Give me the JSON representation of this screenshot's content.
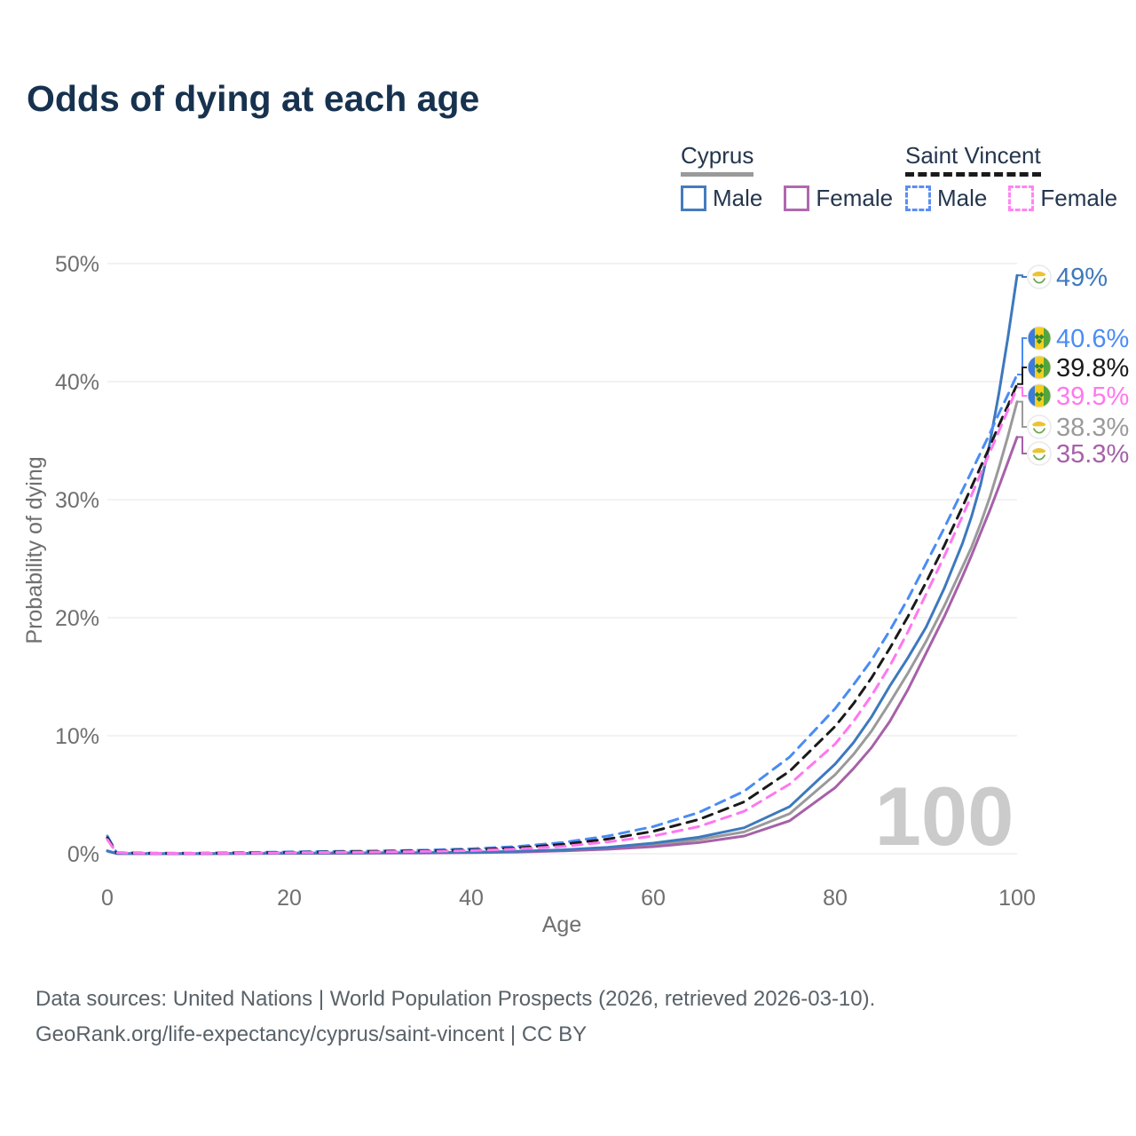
{
  "title": "Odds of dying at each age",
  "watermark": "100",
  "legend": {
    "groups": [
      {
        "label": "Cyprus",
        "underline_style": "solid",
        "underline_color": "#9a9a9a",
        "items": [
          {
            "label": "Male",
            "color": "#447cbd",
            "dashed": false
          },
          {
            "label": "Female",
            "color": "#b069af",
            "dashed": false
          }
        ]
      },
      {
        "label": "Saint Vincent",
        "underline_style": "dashed",
        "underline_color": "#1a1a1a",
        "items": [
          {
            "label": "Male",
            "color": "#5b8ff2",
            "dashed": true
          },
          {
            "label": "Female",
            "color": "#ff85f3",
            "dashed": true
          }
        ]
      }
    ]
  },
  "footer": {
    "line1": "Data sources: United Nations | World Population Prospects (2026, retrieved 2026-03-10).",
    "line2": "GeoRank.org/life-expectancy/cyprus/saint-vincent | CC BY"
  },
  "chart_data": {
    "type": "line",
    "title": "Odds of dying at each age",
    "xlabel": "Age",
    "ylabel": "Probability of dying",
    "xlim": [
      0,
      100
    ],
    "ylim": [
      0,
      50
    ],
    "grid": true,
    "legend_position": "top-right",
    "annotation_age_counter": "100",
    "x_ticks": [
      0,
      20,
      40,
      60,
      80,
      100
    ],
    "y_ticks": [
      "0%",
      "10%",
      "20%",
      "30%",
      "40%",
      "50%"
    ],
    "y_grid_values": [
      0,
      10,
      20,
      30,
      40,
      50
    ],
    "x": [
      0,
      1,
      5,
      10,
      15,
      20,
      25,
      30,
      35,
      40,
      45,
      50,
      55,
      60,
      65,
      70,
      75,
      80,
      82,
      84,
      86,
      88,
      90,
      92,
      94,
      95,
      96,
      97,
      98,
      99,
      100
    ],
    "series": [
      {
        "name": "Cyprus",
        "color": "#9a9a9a",
        "dashed": false,
        "flag": "cyprus",
        "end_label": "38.3%",
        "end_value": 38.3,
        "values": [
          0.24,
          0.025,
          0.01,
          0.01,
          0.03,
          0.05,
          0.06,
          0.07,
          0.09,
          0.12,
          0.17,
          0.28,
          0.46,
          0.75,
          1.2,
          1.85,
          3.4,
          6.7,
          8.4,
          10.4,
          12.8,
          15.3,
          18.0,
          21.0,
          24.3,
          26.0,
          28.0,
          30.2,
          32.7,
          35.4,
          38.3
        ]
      },
      {
        "name": "Cyprus Female",
        "color": "#a661a8",
        "dashed": false,
        "flag": "cyprus",
        "end_label": "35.3%",
        "end_value": 35.3,
        "values": [
          0.22,
          0.02,
          0.01,
          0.01,
          0.02,
          0.03,
          0.04,
          0.05,
          0.07,
          0.1,
          0.14,
          0.24,
          0.38,
          0.6,
          0.95,
          1.5,
          2.8,
          5.6,
          7.2,
          9.0,
          11.2,
          13.9,
          17.0,
          20.1,
          23.5,
          25.3,
          27.2,
          29.1,
          31.1,
          33.2,
          35.3
        ]
      },
      {
        "name": "Cyprus Male",
        "color": "#3d79bd",
        "dashed": false,
        "flag": "cyprus",
        "end_label": "49%",
        "end_value": 49,
        "values": [
          0.25,
          0.03,
          0.01,
          0.01,
          0.04,
          0.06,
          0.07,
          0.08,
          0.1,
          0.13,
          0.2,
          0.33,
          0.55,
          0.9,
          1.4,
          2.2,
          4.0,
          7.6,
          9.4,
          11.6,
          14.2,
          16.6,
          19.2,
          22.5,
          26.3,
          28.6,
          31.3,
          34.8,
          39.0,
          43.8,
          49.0
        ]
      },
      {
        "name": "Saint Vincent Male",
        "color": "#4a8cf5",
        "dashed": true,
        "flag": "saint-vincent",
        "end_label": "40.6%",
        "end_value": 40.6,
        "values": [
          1.5,
          0.1,
          0.05,
          0.05,
          0.1,
          0.16,
          0.2,
          0.25,
          0.31,
          0.42,
          0.62,
          0.95,
          1.5,
          2.3,
          3.5,
          5.3,
          8.2,
          12.3,
          14.3,
          16.4,
          18.9,
          21.6,
          24.6,
          27.6,
          30.8,
          32.4,
          34.0,
          35.6,
          37.3,
          38.9,
          40.6
        ]
      },
      {
        "name": "Saint Vincent",
        "color": "#1a1a1a",
        "dashed": true,
        "flag": "saint-vincent",
        "end_label": "39.8%",
        "end_value": 39.8,
        "values": [
          1.35,
          0.09,
          0.04,
          0.04,
          0.08,
          0.12,
          0.16,
          0.2,
          0.25,
          0.33,
          0.5,
          0.8,
          1.25,
          1.9,
          2.9,
          4.4,
          7.0,
          10.8,
          12.7,
          14.9,
          17.4,
          20.1,
          23.0,
          26.1,
          29.4,
          31.1,
          32.8,
          34.5,
          36.3,
          38.0,
          39.8
        ]
      },
      {
        "name": "Saint Vincent Female",
        "color": "#ff77ef",
        "dashed": true,
        "flag": "saint-vincent",
        "end_label": "39.5%",
        "end_value": 39.5,
        "values": [
          1.2,
          0.08,
          0.04,
          0.04,
          0.06,
          0.09,
          0.12,
          0.16,
          0.2,
          0.27,
          0.4,
          0.62,
          1.0,
          1.5,
          2.3,
          3.6,
          5.9,
          9.3,
          11.2,
          13.4,
          15.9,
          18.8,
          22.0,
          25.2,
          28.6,
          30.4,
          32.2,
          34.0,
          35.8,
          37.6,
          39.5
        ]
      }
    ]
  }
}
